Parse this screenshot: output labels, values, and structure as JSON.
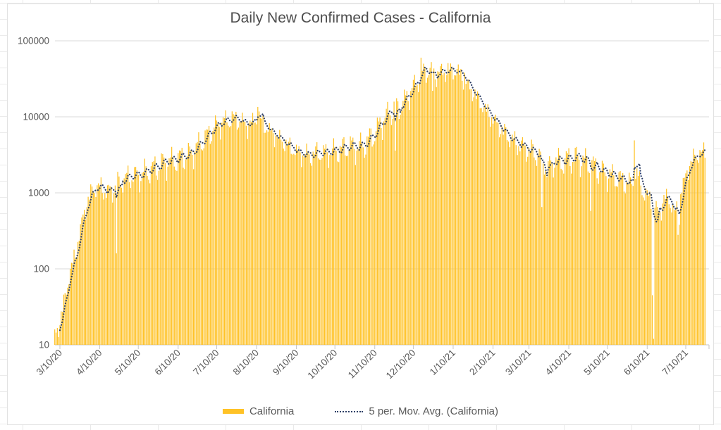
{
  "chart": {
    "title": "Daily New Confirmed Cases - California",
    "legend_items": [
      {
        "label": "California",
        "marker": "bar-swatch"
      },
      {
        "label": "5 per. Mov. Avg. (California)",
        "marker": "dotted-line-swatch"
      }
    ]
  },
  "colors": {
    "bar": "#FFC226",
    "moving_average": "#2E3F66",
    "gridline": "#DADADA",
    "axis_line": "#C6C6C6",
    "axis_text": "#595959",
    "title_text": "#4D4D4D",
    "chart_background": "#FFFFFF",
    "chart_border": "#E2E2E2"
  },
  "chart_data": {
    "type": "bar",
    "title": "Daily New Confirmed Cases - California",
    "xlabel": "",
    "ylabel": "",
    "grid": "horizontal",
    "legend_position": "bottom",
    "y_axis": {
      "scale": "log10",
      "min": 10,
      "max": 100000,
      "tick_labels": [
        "100000",
        "10000",
        "1000",
        "100",
        "10"
      ],
      "tick_values": [
        100000,
        10000,
        1000,
        100,
        10
      ]
    },
    "x_axis": {
      "unit": "days",
      "day0_date": "3/10/20",
      "first_day_offset": -4,
      "last_day_offset": 502,
      "tick_labels": [
        "3/10/20",
        "4/10/20",
        "5/10/20",
        "6/10/20",
        "7/10/20",
        "8/10/20",
        "9/10/20",
        "10/10/20",
        "11/10/20",
        "12/10/20",
        "1/10/21",
        "2/10/21",
        "3/10/21",
        "4/10/21",
        "5/10/21",
        "6/10/21",
        "7/10/21"
      ],
      "tick_day_offsets": [
        0,
        31,
        61,
        92,
        122,
        153,
        184,
        214,
        245,
        275,
        306,
        337,
        365,
        396,
        426,
        457,
        487
      ],
      "label_rotation_deg": -45
    },
    "series": [
      {
        "name": "California",
        "type": "bar",
        "color": "#FFC226",
        "trend_anchors_day_value": [
          [
            -4,
            14
          ],
          [
            0,
            20
          ],
          [
            2,
            30
          ],
          [
            5,
            55
          ],
          [
            8,
            95
          ],
          [
            12,
            160
          ],
          [
            15,
            280
          ],
          [
            18,
            500
          ],
          [
            22,
            850
          ],
          [
            26,
            1150
          ],
          [
            29,
            1250
          ],
          [
            33,
            1150
          ],
          [
            38,
            1050
          ],
          [
            43,
            1250
          ],
          [
            47,
            1450
          ],
          [
            52,
            1600
          ],
          [
            57,
            1750
          ],
          [
            61,
            1700
          ],
          [
            66,
            1900
          ],
          [
            71,
            2100
          ],
          [
            76,
            2250
          ],
          [
            81,
            2600
          ],
          [
            87,
            2700
          ],
          [
            92,
            2900
          ],
          [
            97,
            3100
          ],
          [
            102,
            3400
          ],
          [
            107,
            4200
          ],
          [
            112,
            5200
          ],
          [
            117,
            6500
          ],
          [
            122,
            8000
          ],
          [
            127,
            8800
          ],
          [
            132,
            9500
          ],
          [
            137,
            9800
          ],
          [
            142,
            8800
          ],
          [
            146,
            8000
          ],
          [
            151,
            9000
          ],
          [
            154,
            10500
          ],
          [
            157,
            9000
          ],
          [
            161,
            7200
          ],
          [
            166,
            6200
          ],
          [
            171,
            5200
          ],
          [
            176,
            4500
          ],
          [
            181,
            3900
          ],
          [
            186,
            3400
          ],
          [
            191,
            3300
          ],
          [
            196,
            3200
          ],
          [
            201,
            3500
          ],
          [
            206,
            3400
          ],
          [
            211,
            3600
          ],
          [
            216,
            3700
          ],
          [
            221,
            4000
          ],
          [
            226,
            4200
          ],
          [
            231,
            4100
          ],
          [
            236,
            4300
          ],
          [
            240,
            5000
          ],
          [
            244,
            6000
          ],
          [
            248,
            7500
          ],
          [
            252,
            9500
          ],
          [
            256,
            11500
          ],
          [
            260,
            13000
          ],
          [
            263,
            13500
          ],
          [
            267,
            15500
          ],
          [
            271,
            20000
          ],
          [
            275,
            25000
          ],
          [
            279,
            32000
          ],
          [
            283,
            40000
          ],
          [
            287,
            42000
          ],
          [
            291,
            38000
          ],
          [
            295,
            39000
          ],
          [
            299,
            41000
          ],
          [
            303,
            42000
          ],
          [
            307,
            42000
          ],
          [
            310,
            40000
          ],
          [
            314,
            33000
          ],
          [
            318,
            26000
          ],
          [
            322,
            21000
          ],
          [
            326,
            17000
          ],
          [
            330,
            13500
          ],
          [
            334,
            11000
          ],
          [
            338,
            9200
          ],
          [
            342,
            7600
          ],
          [
            346,
            6300
          ],
          [
            350,
            5400
          ],
          [
            354,
            4800
          ],
          [
            358,
            4400
          ],
          [
            362,
            4000
          ],
          [
            366,
            3700
          ],
          [
            370,
            3400
          ],
          [
            374,
            3100
          ],
          [
            377,
            2700
          ],
          [
            379,
            2000
          ],
          [
            382,
            2400
          ],
          [
            385,
            2800
          ],
          [
            390,
            2600
          ],
          [
            394,
            2800
          ],
          [
            398,
            2900
          ],
          [
            402,
            3000
          ],
          [
            406,
            2800
          ],
          [
            410,
            2600
          ],
          [
            414,
            2400
          ],
          [
            418,
            2150
          ],
          [
            422,
            1950
          ],
          [
            426,
            1800
          ],
          [
            430,
            1700
          ],
          [
            434,
            1600
          ],
          [
            438,
            1500
          ],
          [
            442,
            1400
          ],
          [
            446,
            1350
          ],
          [
            449,
            1800
          ],
          [
            452,
            1300
          ],
          [
            455,
            1000
          ],
          [
            458,
            900
          ],
          [
            461,
            800
          ],
          [
            464,
            620
          ],
          [
            467,
            580
          ],
          [
            470,
            850
          ],
          [
            473,
            900
          ],
          [
            476,
            700
          ],
          [
            478,
            560
          ],
          [
            480,
            620
          ],
          [
            483,
            1000
          ],
          [
            486,
            1500
          ],
          [
            489,
            2200
          ],
          [
            492,
            2800
          ],
          [
            495,
            3200
          ],
          [
            498,
            3400
          ],
          [
            502,
            3500
          ]
        ],
        "weekday_factors_mon_to_sun": [
          0.7,
          0.84,
          1.02,
          1.14,
          1.22,
          1.14,
          0.86
        ],
        "day0_weekday": "Tuesday",
        "anomaly_day_overrides": {
          "44": 160,
          "154": 13500,
          "261": 3600,
          "281": 60000,
          "290": 22000,
          "315": 38000,
          "375": 650,
          "413": 580,
          "447": 4900,
          "461": 45,
          "462": 12,
          "481": 280,
          "482": 380
        }
      },
      {
        "name": "5 per. Mov. Avg. (California)",
        "type": "dotted-line",
        "color": "#2E3F66",
        "window": 5,
        "derived_from": "California"
      }
    ]
  }
}
